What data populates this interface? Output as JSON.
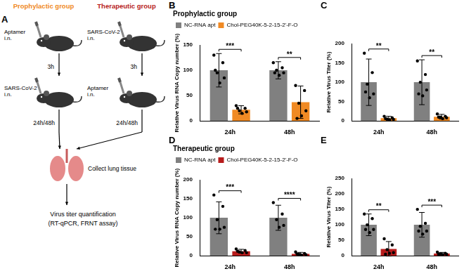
{
  "panel_a": {
    "panel": "A",
    "groups": [
      {
        "title": "Prophylactic group",
        "color": "#f08a24",
        "first": "Aptamer i.n.",
        "interval": "3h",
        "second": "SARS-CoV-2 i.n.",
        "harvest": "24h/48h"
      },
      {
        "title": "Therapeutic group",
        "color": "#b71c1c",
        "first": "SARS-CoV-2 i.n.",
        "interval": "3h",
        "second": "Aptamer i.n.",
        "harvest": "24h/48h"
      }
    ],
    "collect": "Collect lung tissue",
    "quantification": "Virus titer quantification",
    "methods": "(RT-qPCR, FRNT assay)"
  },
  "chart_data": [
    {
      "panel": "B",
      "type": "bar",
      "title": "Prophylactic group",
      "y_label": "Relative Virus RNA Copy number (%)",
      "categories": [
        "24h",
        "48h"
      ],
      "series": [
        {
          "name": "NC-RNA apt",
          "color": "#808080",
          "values": [
            100,
            100
          ],
          "errors": [
            33,
            17
          ],
          "points": [
            [
              130,
              115,
              95,
              85,
              75,
              100
            ],
            [
              115,
              105,
              100,
              95,
              90,
              95
            ]
          ]
        },
        {
          "name": "Chol-PEG40K-5-2-15-2'-F-O",
          "color": "#f08a24",
          "values": [
            22,
            37
          ],
          "errors": [
            8,
            32
          ],
          "points": [
            [
              30,
              25,
              20,
              18,
              15,
              25
            ],
            [
              70,
              60,
              35,
              20,
              10,
              5
            ]
          ]
        }
      ],
      "significance": [
        "***",
        "**"
      ],
      "ylim": [
        0,
        150
      ],
      "yticks": [
        0,
        50,
        100,
        150
      ],
      "grid": false,
      "legend": "top"
    },
    {
      "panel": "C",
      "type": "bar",
      "y_label": "Relative Virus Titer (%)",
      "categories": [
        "24h",
        "48h"
      ],
      "series": [
        {
          "color": "#808080",
          "values": [
            100,
            100
          ],
          "errors": [
            60,
            58
          ],
          "points": [
            [
              175,
              125,
              95,
              70,
              60,
              75
            ],
            [
              155,
              120,
              100,
              80,
              65,
              70
            ]
          ]
        },
        {
          "color": "#f08a24",
          "values": [
            7,
            11
          ],
          "errors": [
            5,
            6
          ],
          "points": [
            [
              12,
              8,
              5,
              4,
              3,
              6
            ],
            [
              18,
              12,
              10,
              8,
              6,
              10
            ]
          ]
        }
      ],
      "significance": [
        "**",
        "**"
      ],
      "ylim": [
        0,
        200
      ],
      "yticks": [
        0,
        50,
        100,
        150,
        200
      ],
      "grid": false
    },
    {
      "panel": "D",
      "type": "bar",
      "title": "Therapeutic group",
      "y_label": "Relative Virus RNA Copy number (%)",
      "categories": [
        "24h",
        "48h"
      ],
      "series": [
        {
          "name": "NC-RNA apt",
          "color": "#808080",
          "values": [
            100,
            100
          ],
          "errors": [
            42,
            33
          ],
          "points": [
            [
              160,
              130,
              95,
              75,
              70,
              70
            ],
            [
              140,
              110,
              95,
              80,
              75
            ]
          ]
        },
        {
          "name": "Chol-PEG40K-5-2-15-2'-F-O",
          "color": "#b71c1c",
          "values": [
            12,
            5
          ],
          "errors": [
            5,
            4
          ],
          "points": [
            [
              18,
              14,
              10,
              8,
              8,
              12
            ],
            [
              10,
              6,
              4,
              3,
              2,
              5
            ]
          ]
        }
      ],
      "significance": [
        "***",
        "****"
      ],
      "ylim": [
        0,
        200
      ],
      "yticks": [
        0,
        50,
        100,
        150,
        200
      ],
      "grid": false,
      "legend": "top"
    },
    {
      "panel": "E",
      "type": "bar",
      "y_label": "Relative Virus Titer (%)",
      "categories": [
        "24h",
        "48h"
      ],
      "series": [
        {
          "color": "#808080",
          "values": [
            100,
            100
          ],
          "errors": [
            35,
            40
          ],
          "points": [
            [
              135,
              120,
              100,
              85,
              75,
              85
            ],
            [
              150,
              105,
              95,
              80,
              70,
              80
            ]
          ]
        },
        {
          "color": "#b71c1c",
          "values": [
            22,
            7
          ],
          "errors": [
            24,
            4
          ],
          "points": [
            [
              55,
              35,
              20,
              10,
              8,
              5
            ],
            [
              12,
              8,
              6,
              5,
              4,
              5
            ]
          ]
        }
      ],
      "significance": [
        "**",
        "***"
      ],
      "ylim": [
        0,
        250
      ],
      "yticks": [
        0,
        50,
        100,
        150,
        200,
        250
      ],
      "grid": false
    }
  ]
}
